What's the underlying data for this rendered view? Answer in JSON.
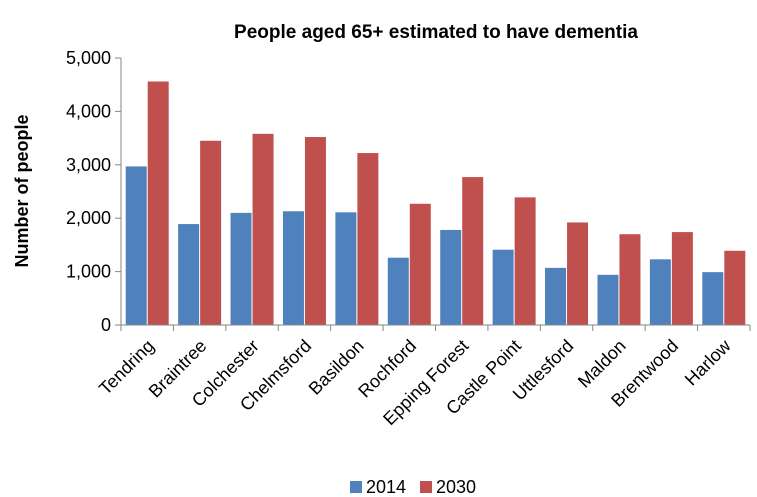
{
  "chart_data": {
    "type": "bar",
    "title": "People aged 65+ estimated to have dementia",
    "xlabel": "",
    "ylabel": "Number of people",
    "categories": [
      "Tendring",
      "Braintree",
      "Colchester",
      "Chelmsford",
      "Basildon",
      "Rochford",
      "Epping Forest",
      "Castle Point",
      "Uttlesford",
      "Maldon",
      "Brentwood",
      "Harlow"
    ],
    "series": [
      {
        "name": "2014",
        "color": "#4f81bd",
        "values": [
          2970,
          1890,
          2100,
          2130,
          2110,
          1260,
          1780,
          1410,
          1070,
          940,
          1230,
          990
        ]
      },
      {
        "name": "2030",
        "color": "#c0504d",
        "values": [
          4560,
          3450,
          3580,
          3520,
          3220,
          2270,
          2770,
          2390,
          1920,
          1700,
          1740,
          1390
        ]
      }
    ],
    "ylim": [
      0,
      5000
    ],
    "yticks": [
      "0",
      "1,000",
      "2,000",
      "3,000",
      "4,000",
      "5,000"
    ],
    "ytick_values": [
      0,
      1000,
      2000,
      3000,
      4000,
      5000
    ],
    "grid": false,
    "legend_position": "bottom"
  }
}
